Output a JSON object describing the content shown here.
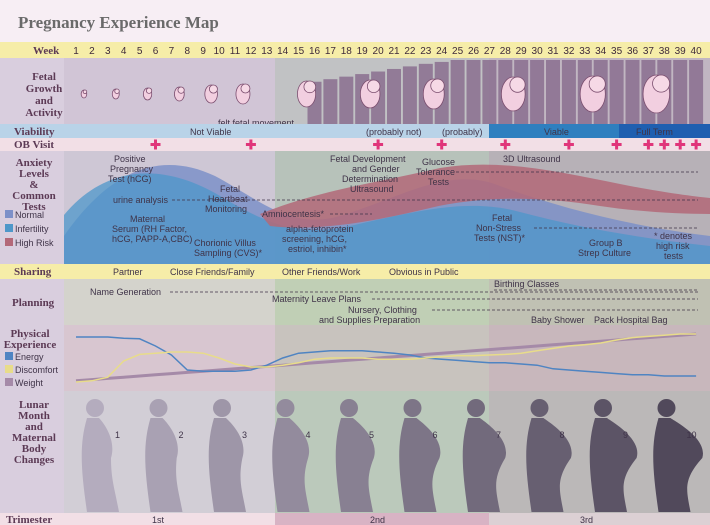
{
  "title": "Pregnancy Experience Map",
  "rows": {
    "week": "Week",
    "fetal": [
      "Fetal",
      "Growth",
      "and",
      "Activity"
    ],
    "viability": "Viability",
    "ob": "OB Visit",
    "anxiety": [
      "Anxiety",
      "Levels",
      "&",
      "Common",
      "Tests"
    ],
    "sharing": "Sharing",
    "planning": "Planning",
    "physical": [
      "Physical",
      "Experience"
    ],
    "lunar": [
      "Lunar",
      "Month",
      "and",
      "Maternal",
      "Body",
      "Changes"
    ],
    "trimester": "Trimester"
  },
  "weeks": [
    "1",
    "2",
    "3",
    "4",
    "5",
    "6",
    "7",
    "8",
    "9",
    "10",
    "11",
    "12",
    "13",
    "14",
    "15",
    "16",
    "17",
    "18",
    "19",
    "20",
    "21",
    "22",
    "23",
    "24",
    "25",
    "26",
    "27",
    "28",
    "29",
    "30",
    "31",
    "32",
    "33",
    "34",
    "35",
    "36",
    "37",
    "38",
    "39",
    "40"
  ],
  "fetal_note": "felt fetal movement",
  "viability": {
    "not_viable": "Not Viable",
    "probably_not": "(probably not)",
    "probably": "(probably)",
    "viable": "Viable",
    "full_term": "Full Term"
  },
  "ob_visit_weeks": [
    6,
    12,
    20,
    24,
    28,
    32,
    35,
    37,
    38,
    39,
    40
  ],
  "anxiety_legend": {
    "normal": "Normal",
    "infertility": "Infertility",
    "high_risk": "High Risk"
  },
  "tests": {
    "positive": [
      "Positive",
      "Pregnancy",
      "Test (hCG)"
    ],
    "urine": "urine analysis",
    "serum": [
      "Maternal",
      "Serum (RH Factor,",
      "hCG, PAPP-A,CBC)"
    ],
    "heartbeat": [
      "Fetal",
      "Heartbeat",
      "Monitoring"
    ],
    "cvs": [
      "Chorionic Villus",
      "Sampling (CVS)*"
    ],
    "amnio": "Amniocentesis*",
    "afp": [
      "alpha-fetoprotein",
      "screening, hCG,",
      "estriol, inhibin*"
    ],
    "fdgd": [
      "Fetal Development",
      "and Gender",
      "Determination",
      "Ultrasound"
    ],
    "glucose": [
      "Glucose",
      "Tolerance",
      "Tests"
    ],
    "us3d": "3D Ultrasound",
    "nst": [
      "Fetal",
      "Non-Stress",
      "Tests (NST)*"
    ],
    "groupb": [
      "Group B",
      "Strep Culture"
    ],
    "denotes": [
      "* denotes",
      "high risk",
      "tests"
    ]
  },
  "sharing": [
    "Partner",
    "Close Friends/Family",
    "Other Friends/Work",
    "Obvious in Public"
  ],
  "planning": {
    "name": "Name Generation",
    "birthing": "Birthing Classes",
    "leave": "Maternity Leave Plans",
    "nursery": [
      "Nursery, Clothing",
      "and Supplies Preparation"
    ],
    "shower": "Baby Shower",
    "bag": "Pack Hospital Bag"
  },
  "physical_legend": {
    "energy": "Energy",
    "discomfort": "Discomfort",
    "weight": "Weight"
  },
  "months": [
    "1",
    "2",
    "3",
    "4",
    "5",
    "6",
    "7",
    "8",
    "9",
    "10"
  ],
  "trimesters": [
    "1st",
    "2nd",
    "3rd"
  ],
  "colors": {
    "first_tri": "#c5c0cc",
    "second_tri": "#a6bca6",
    "third_tri": "#a9a2a2",
    "week_header": "#f6eda8",
    "label_col": "#d4c6d6",
    "label_text": "#5c3a55",
    "viability_blue": "#2f7fbf",
    "full_term_blue": "#1f5fb0",
    "ob_cross": "#e0357a",
    "normal": "#7d90c8",
    "infertility": "#4e97c9",
    "high_risk": "#b36878",
    "energy": "#4f84c2",
    "discomfort": "#e8dc8a",
    "weight": "#a58aa8"
  },
  "physical_levels": {
    "energy": [
      0.85,
      0.85,
      0.85,
      0.83,
      0.82,
      0.7,
      0.55,
      0.3,
      0.28,
      0.28,
      0.28,
      0.3,
      0.38,
      0.5,
      0.58,
      0.6,
      0.62,
      0.62,
      0.62,
      0.6,
      0.58,
      0.55,
      0.5,
      0.48,
      0.46,
      0.44,
      0.42,
      0.42,
      0.4,
      0.38,
      0.32,
      0.3,
      0.28,
      0.26,
      0.24,
      0.22,
      0.22,
      0.2,
      0.2,
      0.2
    ],
    "discomfort": [
      0.1,
      0.12,
      0.18,
      0.45,
      0.56,
      0.58,
      0.6,
      0.6,
      0.58,
      0.5,
      0.4,
      0.35,
      0.35,
      0.38,
      0.42,
      0.48,
      0.5,
      0.5,
      0.5,
      0.48,
      0.48,
      0.48,
      0.5,
      0.52,
      0.54,
      0.54,
      0.55,
      0.56,
      0.58,
      0.62,
      0.66,
      0.7,
      0.72,
      0.75,
      0.8,
      0.84,
      0.86,
      0.88,
      0.9,
      0.9
    ],
    "weight": [
      0.12,
      0.14,
      0.16,
      0.18,
      0.2,
      0.22,
      0.24,
      0.26,
      0.28,
      0.3,
      0.32,
      0.34,
      0.36,
      0.38,
      0.4,
      0.42,
      0.44,
      0.46,
      0.48,
      0.5,
      0.52,
      0.54,
      0.56,
      0.58,
      0.6,
      0.62,
      0.64,
      0.66,
      0.68,
      0.7,
      0.72,
      0.74,
      0.76,
      0.78,
      0.8,
      0.82,
      0.84,
      0.86,
      0.88,
      0.9
    ]
  },
  "fetal_size_levels": [
    0.1,
    0.12,
    0.15,
    0.18,
    0.22,
    0.26,
    0.3,
    0.34,
    0.38,
    0.42,
    0.46,
    0.5,
    0.54,
    0.58,
    0.62,
    0.66,
    0.7,
    0.74,
    0.78,
    0.82,
    0.86,
    0.9,
    0.94,
    0.97,
    1.0,
    1.0,
    1.0,
    1.0,
    1.0,
    1.0,
    1.0,
    1.0,
    1.0,
    1.0,
    1.0,
    1.0,
    1.0,
    1.0,
    1.0,
    1.0
  ]
}
